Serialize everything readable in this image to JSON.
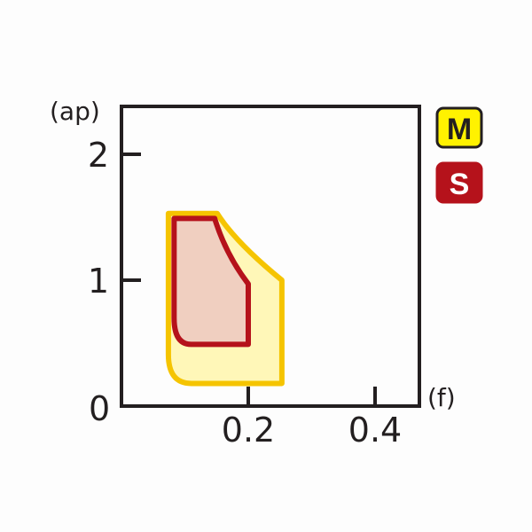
{
  "chart_data": {
    "type": "area",
    "title": "",
    "xlabel": "(f)",
    "ylabel": "(ap)",
    "xlim": [
      0,
      0.47
    ],
    "ylim": [
      0,
      2.3
    ],
    "x_ticks": [
      {
        "value": 0.2,
        "label": "0.2"
      },
      {
        "value": 0.4,
        "label": "0.4"
      }
    ],
    "y_ticks": [
      {
        "value": 1,
        "label": "1"
      },
      {
        "value": 2,
        "label": "2"
      }
    ],
    "origin_label": "0",
    "grid": false,
    "legend_placement": "right",
    "series": [
      {
        "name": "M",
        "fill": "#fff7b8",
        "stroke": "#f5c400",
        "points": [
          [
            0.074,
            1.53
          ],
          [
            0.151,
            1.53
          ],
          [
            0.18,
            1.3
          ],
          [
            0.253,
            1.0
          ],
          [
            0.253,
            0.18
          ],
          [
            0.11,
            0.18
          ],
          [
            0.074,
            0.41
          ]
        ]
      },
      {
        "name": "S",
        "fill": "#f0cfc0",
        "stroke": "#b5121b",
        "points": [
          [
            0.083,
            1.49
          ],
          [
            0.147,
            1.49
          ],
          [
            0.165,
            1.2
          ],
          [
            0.2,
            0.97
          ],
          [
            0.2,
            0.49
          ],
          [
            0.11,
            0.49
          ],
          [
            0.083,
            0.7
          ]
        ]
      }
    ],
    "legend": [
      {
        "label": "M",
        "bg": "#fff200",
        "border": "#231f20",
        "text": "#231f20"
      },
      {
        "label": "S",
        "bg": "#b5121b",
        "border": "#b5121b",
        "text": "#ffffff"
      }
    ]
  }
}
